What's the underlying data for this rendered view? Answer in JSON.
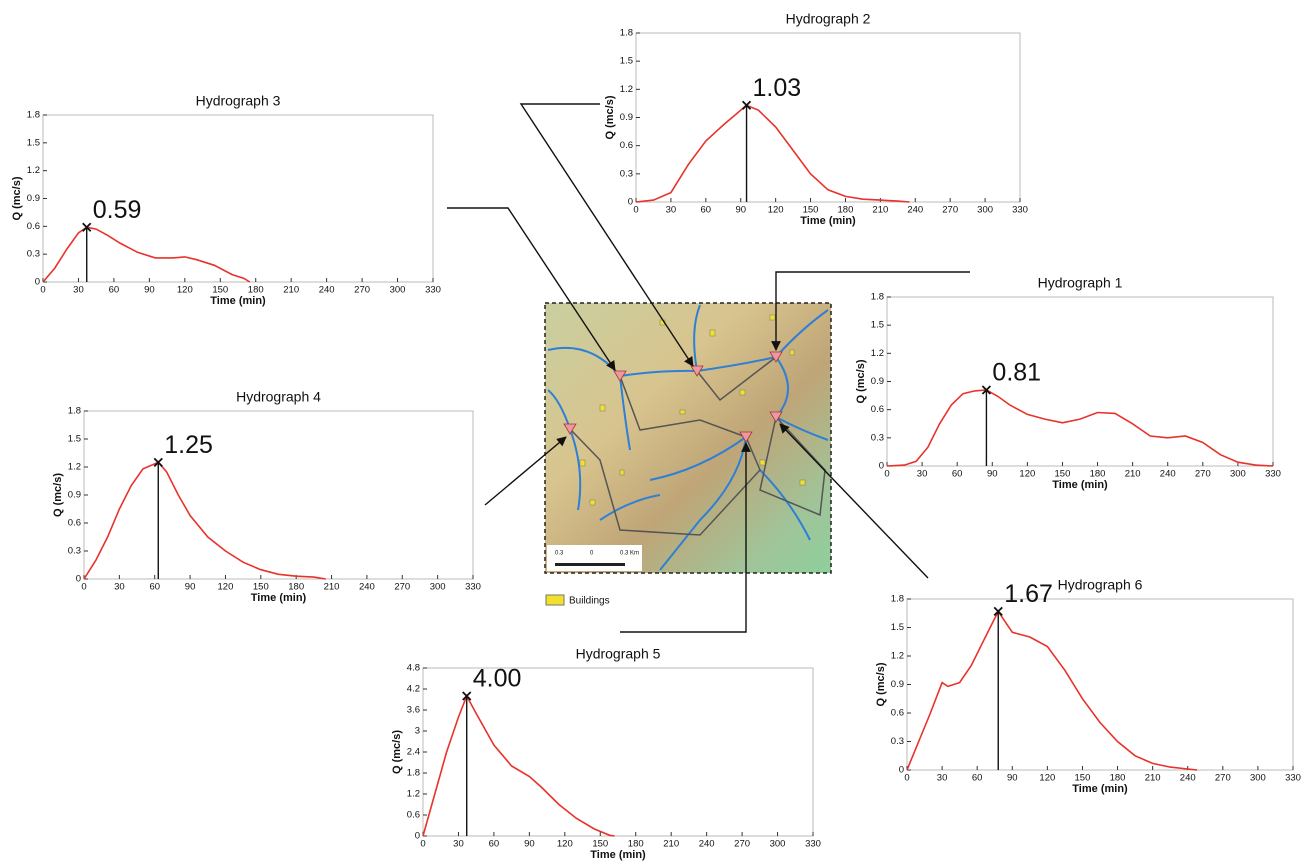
{
  "chart_data": [
    {
      "type": "line",
      "title": "Hydrograph 1",
      "xlabel": "Time (min)",
      "ylabel": "Q (mc/s)",
      "color": "#e8322b",
      "x": [
        0,
        15,
        25,
        35,
        45,
        55,
        65,
        75,
        85,
        95,
        105,
        120,
        135,
        150,
        165,
        180,
        195,
        210,
        225,
        240,
        255,
        270,
        285,
        300,
        315,
        330
      ],
      "values": [
        0,
        0.01,
        0.05,
        0.2,
        0.45,
        0.65,
        0.77,
        0.8,
        0.81,
        0.74,
        0.65,
        0.55,
        0.5,
        0.46,
        0.5,
        0.57,
        0.56,
        0.45,
        0.32,
        0.3,
        0.32,
        0.25,
        0.12,
        0.04,
        0.01,
        0
      ],
      "annotations": [
        {
          "x": 85,
          "y": 0.81,
          "text": "0.81"
        }
      ],
      "xlim": [
        0,
        330
      ],
      "xticks": [
        0,
        30,
        60,
        90,
        120,
        150,
        180,
        210,
        240,
        270,
        300,
        330
      ],
      "ylim": [
        0,
        1.8
      ],
      "yticks": [
        0,
        0.3,
        0.6,
        0.9,
        1.2,
        1.5,
        1.8
      ]
    },
    {
      "type": "line",
      "title": "Hydrograph 2",
      "xlabel": "Time (min)",
      "ylabel": "Q (mc/s)",
      "color": "#e8322b",
      "x": [
        0,
        15,
        30,
        45,
        60,
        75,
        95,
        105,
        120,
        135,
        150,
        165,
        180,
        195,
        210,
        225,
        235
      ],
      "values": [
        0,
        0.02,
        0.1,
        0.4,
        0.65,
        0.82,
        1.03,
        0.98,
        0.8,
        0.55,
        0.3,
        0.13,
        0.06,
        0.03,
        0.02,
        0.01,
        0
      ],
      "annotations": [
        {
          "x": 95,
          "y": 1.03,
          "text": "1.03"
        }
      ],
      "xlim": [
        0,
        330
      ],
      "xticks": [
        0,
        30,
        60,
        90,
        120,
        150,
        180,
        210,
        240,
        270,
        300,
        330
      ],
      "ylim": [
        0,
        1.8
      ],
      "yticks": [
        0,
        0.3,
        0.6,
        0.9,
        1.2,
        1.5,
        1.8
      ]
    },
    {
      "type": "line",
      "title": "Hydrograph 3",
      "xlabel": "Time (min)",
      "ylabel": "Q (mc/s)",
      "color": "#e8322b",
      "x": [
        0,
        10,
        20,
        30,
        37,
        45,
        55,
        65,
        80,
        95,
        110,
        120,
        130,
        145,
        160,
        170,
        175
      ],
      "values": [
        0,
        0.15,
        0.35,
        0.53,
        0.59,
        0.57,
        0.5,
        0.42,
        0.32,
        0.26,
        0.26,
        0.27,
        0.24,
        0.18,
        0.08,
        0.04,
        0
      ],
      "annotations": [
        {
          "x": 37,
          "y": 0.59,
          "text": "0.59"
        }
      ],
      "xlim": [
        0,
        330
      ],
      "xticks": [
        0,
        30,
        60,
        90,
        120,
        150,
        180,
        210,
        240,
        270,
        300,
        330
      ],
      "ylim": [
        0,
        1.8
      ],
      "yticks": [
        0,
        0.3,
        0.6,
        0.9,
        1.2,
        1.5,
        1.8
      ]
    },
    {
      "type": "line",
      "title": "Hydrograph 4",
      "xlabel": "Time (min)",
      "ylabel": "Q (mc/s)",
      "color": "#e8322b",
      "x": [
        0,
        10,
        20,
        30,
        40,
        50,
        63,
        70,
        80,
        90,
        105,
        120,
        135,
        150,
        165,
        180,
        195,
        205
      ],
      "values": [
        0,
        0.2,
        0.45,
        0.75,
        1.0,
        1.18,
        1.25,
        1.15,
        0.9,
        0.68,
        0.45,
        0.3,
        0.18,
        0.1,
        0.05,
        0.03,
        0.02,
        0
      ],
      "annotations": [
        {
          "x": 63,
          "y": 1.25,
          "text": "1.25"
        }
      ],
      "xlim": [
        0,
        330
      ],
      "xticks": [
        0,
        30,
        60,
        90,
        120,
        150,
        180,
        210,
        240,
        270,
        300,
        330
      ],
      "ylim": [
        0,
        1.8
      ],
      "yticks": [
        0,
        0.3,
        0.6,
        0.9,
        1.2,
        1.5,
        1.8
      ]
    },
    {
      "type": "line",
      "title": "Hydrograph 5",
      "xlabel": "Time (min)",
      "ylabel": "Q (mc/s)",
      "color": "#e8322b",
      "x": [
        0,
        10,
        20,
        30,
        37,
        45,
        60,
        75,
        90,
        100,
        115,
        130,
        145,
        158,
        162
      ],
      "values": [
        0,
        1.2,
        2.4,
        3.4,
        4.0,
        3.5,
        2.6,
        2.0,
        1.7,
        1.4,
        0.9,
        0.5,
        0.2,
        0.02,
        0
      ],
      "annotations": [
        {
          "x": 37,
          "y": 4.0,
          "text": "4.00"
        }
      ],
      "xlim": [
        0,
        330
      ],
      "xticks": [
        0,
        30,
        60,
        90,
        120,
        150,
        180,
        210,
        240,
        270,
        300,
        330
      ],
      "ylim": [
        0,
        4.8
      ],
      "yticks": [
        0,
        0.6,
        1.2,
        1.8,
        2.4,
        3,
        3.6,
        4.2,
        4.8
      ]
    },
    {
      "type": "line",
      "title": "Hydrograph 6",
      "xlabel": "Time (min)",
      "ylabel": "Q (mc/s)",
      "color": "#e8322b",
      "x": [
        0,
        10,
        20,
        30,
        35,
        45,
        55,
        65,
        78,
        90,
        105,
        120,
        135,
        150,
        165,
        180,
        195,
        210,
        225,
        240,
        248
      ],
      "values": [
        0,
        0.3,
        0.6,
        0.92,
        0.88,
        0.92,
        1.1,
        1.35,
        1.67,
        1.45,
        1.4,
        1.3,
        1.05,
        0.75,
        0.5,
        0.3,
        0.15,
        0.07,
        0.03,
        0.01,
        0
      ],
      "annotations": [
        {
          "x": 78,
          "y": 1.67,
          "text": "1.67"
        }
      ],
      "xlim": [
        0,
        330
      ],
      "xticks": [
        0,
        30,
        60,
        90,
        120,
        150,
        180,
        210,
        240,
        270,
        300,
        330
      ],
      "ylim": [
        0,
        1.8
      ],
      "yticks": [
        0,
        0.3,
        0.6,
        0.9,
        1.2,
        1.5,
        1.8
      ]
    }
  ],
  "map": {
    "legend": "Buildings",
    "scale_labels": [
      "0.3",
      "0",
      "0.3 Km"
    ]
  }
}
